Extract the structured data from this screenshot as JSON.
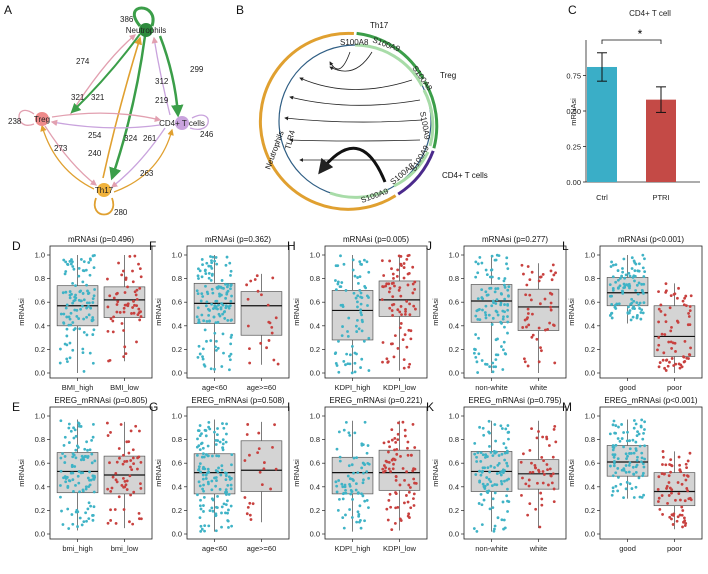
{
  "panels": {
    "A": "A",
    "B": "B",
    "C": "C"
  },
  "colors": {
    "teal": "#3fb3c6",
    "red": "#c8413f",
    "box_fill": "#d4d4d4",
    "green": "#3b9e49",
    "orange": "#e0a030",
    "pink": "#e2a0b0",
    "node_green": "#2e8b3d",
    "node_orange": "#f0b23c",
    "node_pink": "#ee8a8a",
    "node_violet": "#c9a3dd",
    "bar_ctrl": "#3aaec7",
    "bar_ptri": "#c44a46",
    "arc_purple": "#4b2a8c",
    "arc_blue": "#2f5e84"
  },
  "network": {
    "nodes": [
      "Neutrophils",
      "Treg",
      "CD4+ T cells",
      "Th17"
    ],
    "self_loops": [
      {
        "node": "Neutrophils",
        "value": "386"
      },
      {
        "node": "Treg",
        "value": "238"
      },
      {
        "node": "CD4+ T cells",
        "value": "246"
      },
      {
        "node": "Th17",
        "value": "280"
      }
    ],
    "edge_labels": [
      "274",
      "312",
      "299",
      "321",
      "321",
      "219",
      "254",
      "324",
      "261",
      "240",
      "273",
      "263"
    ]
  },
  "circos": {
    "groups": [
      "Th17",
      "Treg",
      "CD4+ T cells",
      "Neutrophils"
    ],
    "genes": [
      "S100A8",
      "S100A9",
      "S100A8",
      "S100A9",
      "S100A9",
      "S100A9",
      "S100A8",
      "TLR4"
    ]
  },
  "bar_chart": {
    "chart_data": {
      "type": "bar",
      "title": "CD4+ T cell",
      "categories": [
        "Ctrl",
        "PTRI"
      ],
      "values": [
        0.81,
        0.58
      ],
      "errors": [
        0.1,
        0.09
      ],
      "ylabel": "mRNAsi",
      "ylim": [
        0,
        1.0
      ],
      "yticks": [
        "0.00",
        "0.25",
        "0.50",
        "0.75"
      ],
      "annotation": "*"
    }
  },
  "box_panels": [
    {
      "id": "D",
      "title": "mRNAsi (p=0.496)",
      "ylabel": "mRNAsi",
      "categories": [
        "BMI_high",
        "BMI_low"
      ],
      "stats": [
        [
          0.0,
          0.4,
          0.57,
          0.74,
          1.0
        ],
        [
          0.1,
          0.47,
          0.62,
          0.73,
          1.0
        ]
      ],
      "n": [
        110,
        60
      ]
    },
    {
      "id": "F",
      "title": "mRNAsi (p=0.362)",
      "ylabel": "mRNAsi",
      "categories": [
        "age<60",
        "age>=60"
      ],
      "stats": [
        [
          0.0,
          0.42,
          0.59,
          0.76,
          1.0
        ],
        [
          0.07,
          0.32,
          0.57,
          0.69,
          0.84
        ]
      ],
      "n": [
        140,
        22
      ]
    },
    {
      "id": "H",
      "title": "mRNAsi (p=0.005)",
      "ylabel": "mRNAsi",
      "categories": [
        "KDPI_high",
        "KDPI_low"
      ],
      "stats": [
        [
          0.0,
          0.28,
          0.53,
          0.7,
          1.0
        ],
        [
          0.02,
          0.48,
          0.62,
          0.78,
          1.0
        ]
      ],
      "n": [
        80,
        80
      ]
    },
    {
      "id": "J",
      "title": "mRNAsi (p=0.277)",
      "ylabel": "mRNAsi",
      "categories": [
        "non-white",
        "white"
      ],
      "stats": [
        [
          0.0,
          0.43,
          0.61,
          0.75,
          1.0
        ],
        [
          0.0,
          0.36,
          0.56,
          0.71,
          0.93
        ]
      ],
      "n": [
        110,
        50
      ]
    },
    {
      "id": "L",
      "title": "mRNAsi (p<0.001)",
      "ylabel": "mRNAsi",
      "categories": [
        "good",
        "poor"
      ],
      "stats": [
        [
          0.42,
          0.57,
          0.68,
          0.81,
          1.0
        ],
        [
          0.0,
          0.14,
          0.31,
          0.57,
          0.76
        ]
      ],
      "n": [
        100,
        70
      ]
    },
    {
      "id": "E",
      "title": "EREG_mRNAsi (p=0.805)",
      "ylabel": "mRNAsi",
      "categories": [
        "bmi_high",
        "bmi_low"
      ],
      "stats": [
        [
          0.03,
          0.35,
          0.53,
          0.69,
          0.97
        ],
        [
          0.05,
          0.34,
          0.5,
          0.66,
          0.95
        ]
      ],
      "n": [
        110,
        60
      ]
    },
    {
      "id": "G",
      "title": "EREG_mRNAsi (p=0.508)",
      "ylabel": "mRNAsi",
      "categories": [
        "age<60",
        "age>=60"
      ],
      "stats": [
        [
          0.02,
          0.34,
          0.52,
          0.68,
          0.97
        ],
        [
          0.1,
          0.36,
          0.54,
          0.79,
          0.95
        ]
      ],
      "n": [
        140,
        22
      ]
    },
    {
      "id": "I",
      "title": "EREG_mRNAsi (p=0.221)",
      "ylabel": "mRNAsi",
      "categories": [
        "KDPI_high",
        "KDPI_low"
      ],
      "stats": [
        [
          0.02,
          0.34,
          0.52,
          0.65,
          0.96
        ],
        [
          0.03,
          0.37,
          0.52,
          0.71,
          0.96
        ]
      ],
      "n": [
        80,
        80
      ]
    },
    {
      "id": "K",
      "title": "EREG_mRNAsi (p=0.795)",
      "ylabel": "mRNAsi",
      "categories": [
        "non-white",
        "white"
      ],
      "stats": [
        [
          0.02,
          0.36,
          0.53,
          0.7,
          0.96
        ],
        [
          0.05,
          0.38,
          0.51,
          0.63,
          0.96
        ]
      ],
      "n": [
        110,
        50
      ]
    },
    {
      "id": "M",
      "title": "EREG_mRNAsi (p<0.001)",
      "ylabel": "mRNAsi",
      "categories": [
        "good",
        "poor"
      ],
      "stats": [
        [
          0.3,
          0.49,
          0.61,
          0.75,
          0.97
        ],
        [
          0.04,
          0.24,
          0.36,
          0.52,
          0.7
        ]
      ],
      "n": [
        100,
        70
      ]
    }
  ],
  "yticks": [
    "0.0",
    "0.2",
    "0.4",
    "0.6",
    "0.8",
    "1.0"
  ]
}
